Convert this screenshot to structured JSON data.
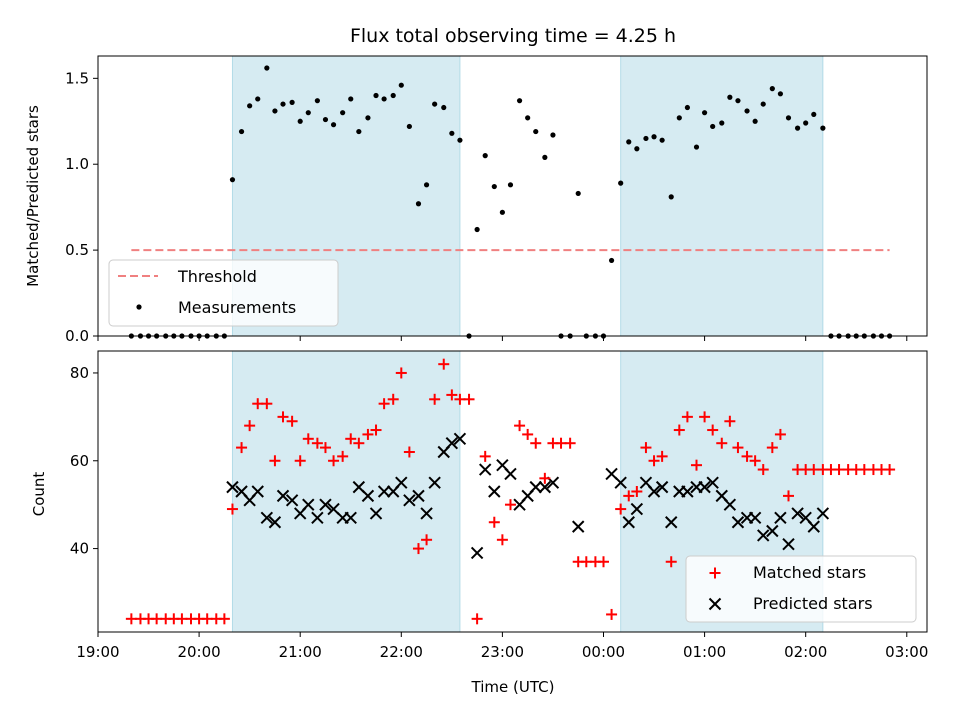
{
  "chart_data": [
    {
      "type": "scatter",
      "title": "Flux total observing time = 4.25 h",
      "xlabel": "",
      "ylabel": "Matched/Predicted stars",
      "xlim": [
        19.0,
        27.2
      ],
      "ylim": [
        0.0,
        1.63
      ],
      "yticks": [
        0.0,
        0.5,
        1.0,
        1.5
      ],
      "ytick_labels": [
        "0.0",
        "0.5",
        "1.0",
        "1.5"
      ],
      "shaded_intervals": [
        [
          20.33,
          22.58
        ],
        [
          24.17,
          26.17
        ]
      ],
      "threshold": {
        "name": "Threshold",
        "value": 0.5,
        "x_range": [
          19.33,
          26.83
        ],
        "color": "#f08080"
      },
      "legend": {
        "position": "lower-left",
        "entries": [
          "Threshold",
          "Measurements"
        ]
      },
      "series": [
        {
          "name": "Measurements",
          "color": "#000000",
          "points": [
            [
              19.33,
              0
            ],
            [
              19.42,
              0
            ],
            [
              19.5,
              0
            ],
            [
              19.58,
              0
            ],
            [
              19.67,
              0
            ],
            [
              19.75,
              0
            ],
            [
              19.83,
              0
            ],
            [
              19.92,
              0
            ],
            [
              20.0,
              0
            ],
            [
              20.08,
              0
            ],
            [
              20.17,
              0
            ],
            [
              20.25,
              0
            ],
            [
              20.33,
              0.91
            ],
            [
              20.42,
              1.19
            ],
            [
              20.5,
              1.34
            ],
            [
              20.58,
              1.38
            ],
            [
              20.67,
              1.56
            ],
            [
              20.75,
              1.31
            ],
            [
              20.83,
              1.35
            ],
            [
              20.92,
              1.36
            ],
            [
              21.0,
              1.25
            ],
            [
              21.08,
              1.3
            ],
            [
              21.17,
              1.37
            ],
            [
              21.25,
              1.26
            ],
            [
              21.33,
              1.23
            ],
            [
              21.42,
              1.3
            ],
            [
              21.5,
              1.38
            ],
            [
              21.58,
              1.19
            ],
            [
              21.67,
              1.27
            ],
            [
              21.75,
              1.4
            ],
            [
              21.83,
              1.38
            ],
            [
              21.92,
              1.4
            ],
            [
              22.0,
              1.46
            ],
            [
              22.08,
              1.22
            ],
            [
              22.17,
              0.77
            ],
            [
              22.25,
              0.88
            ],
            [
              22.33,
              1.35
            ],
            [
              22.42,
              1.33
            ],
            [
              22.5,
              1.18
            ],
            [
              22.58,
              1.14
            ],
            [
              22.67,
              0
            ],
            [
              22.75,
              0.62
            ],
            [
              22.83,
              1.05
            ],
            [
              22.92,
              0.87
            ],
            [
              23.0,
              0.72
            ],
            [
              23.08,
              0.88
            ],
            [
              23.17,
              1.37
            ],
            [
              23.25,
              1.27
            ],
            [
              23.33,
              1.19
            ],
            [
              23.42,
              1.04
            ],
            [
              23.5,
              1.17
            ],
            [
              23.58,
              0
            ],
            [
              23.67,
              0
            ],
            [
              23.75,
              0.83
            ],
            [
              23.83,
              0
            ],
            [
              23.92,
              0
            ],
            [
              24.0,
              0
            ],
            [
              24.08,
              0.44
            ],
            [
              24.17,
              0.89
            ],
            [
              24.25,
              1.13
            ],
            [
              24.33,
              1.09
            ],
            [
              24.42,
              1.15
            ],
            [
              24.5,
              1.16
            ],
            [
              24.58,
              1.14
            ],
            [
              24.67,
              0.81
            ],
            [
              24.75,
              1.27
            ],
            [
              24.83,
              1.33
            ],
            [
              24.92,
              1.1
            ],
            [
              25.0,
              1.3
            ],
            [
              25.08,
              1.22
            ],
            [
              25.17,
              1.24
            ],
            [
              25.25,
              1.39
            ],
            [
              25.33,
              1.37
            ],
            [
              25.42,
              1.31
            ],
            [
              25.5,
              1.25
            ],
            [
              25.58,
              1.35
            ],
            [
              25.67,
              1.44
            ],
            [
              25.75,
              1.41
            ],
            [
              25.83,
              1.27
            ],
            [
              25.92,
              1.21
            ],
            [
              26.0,
              1.24
            ],
            [
              26.08,
              1.29
            ],
            [
              26.17,
              1.21
            ],
            [
              26.25,
              0
            ],
            [
              26.33,
              0
            ],
            [
              26.42,
              0
            ],
            [
              26.5,
              0
            ],
            [
              26.58,
              0
            ],
            [
              26.67,
              0
            ],
            [
              26.75,
              0
            ],
            [
              26.83,
              0
            ]
          ]
        }
      ]
    },
    {
      "type": "scatter",
      "title": "",
      "xlabel": "Time (UTC)",
      "ylabel": "Count",
      "xlim": [
        19.0,
        27.2
      ],
      "ylim": [
        21,
        85
      ],
      "yticks": [
        40,
        60,
        80
      ],
      "ytick_labels": [
        "40",
        "60",
        "80"
      ],
      "xticks": [
        19,
        20,
        21,
        22,
        23,
        24,
        25,
        26,
        27
      ],
      "xtick_labels": [
        "19:00",
        "20:00",
        "21:00",
        "22:00",
        "23:00",
        "00:00",
        "01:00",
        "02:00",
        "03:00"
      ],
      "shaded_intervals": [
        [
          20.33,
          22.58
        ],
        [
          24.17,
          26.17
        ]
      ],
      "legend": {
        "position": "lower-right",
        "entries": [
          "Matched stars",
          "Predicted stars"
        ]
      },
      "series": [
        {
          "name": "Matched stars",
          "marker": "plus",
          "color": "#ff0000",
          "points": [
            [
              19.33,
              24
            ],
            [
              19.42,
              24
            ],
            [
              19.5,
              24
            ],
            [
              19.58,
              24
            ],
            [
              19.67,
              24
            ],
            [
              19.75,
              24
            ],
            [
              19.83,
              24
            ],
            [
              19.92,
              24
            ],
            [
              20.0,
              24
            ],
            [
              20.08,
              24
            ],
            [
              20.17,
              24
            ],
            [
              20.25,
              24
            ],
            [
              20.33,
              49
            ],
            [
              20.42,
              63
            ],
            [
              20.5,
              68
            ],
            [
              20.58,
              73
            ],
            [
              20.67,
              73
            ],
            [
              20.75,
              60
            ],
            [
              20.83,
              70
            ],
            [
              20.92,
              69
            ],
            [
              21.0,
              60
            ],
            [
              21.08,
              65
            ],
            [
              21.17,
              64
            ],
            [
              21.25,
              63
            ],
            [
              21.33,
              60
            ],
            [
              21.42,
              61
            ],
            [
              21.5,
              65
            ],
            [
              21.58,
              64
            ],
            [
              21.67,
              66
            ],
            [
              21.75,
              67
            ],
            [
              21.83,
              73
            ],
            [
              21.92,
              74
            ],
            [
              22.0,
              80
            ],
            [
              22.08,
              62
            ],
            [
              22.17,
              40
            ],
            [
              22.25,
              42
            ],
            [
              22.33,
              74
            ],
            [
              22.42,
              82
            ],
            [
              22.5,
              75
            ],
            [
              22.58,
              74
            ],
            [
              22.67,
              74
            ],
            [
              22.75,
              24
            ],
            [
              22.83,
              61
            ],
            [
              22.92,
              46
            ],
            [
              23.0,
              42
            ],
            [
              23.08,
              50
            ],
            [
              23.17,
              68
            ],
            [
              23.25,
              66
            ],
            [
              23.33,
              64
            ],
            [
              23.42,
              56
            ],
            [
              23.5,
              64
            ],
            [
              23.58,
              64
            ],
            [
              23.67,
              64
            ],
            [
              23.75,
              37
            ],
            [
              23.83,
              37
            ],
            [
              23.92,
              37
            ],
            [
              24.0,
              37
            ],
            [
              24.08,
              25
            ],
            [
              24.17,
              49
            ],
            [
              24.25,
              52
            ],
            [
              24.33,
              53
            ],
            [
              24.42,
              63
            ],
            [
              24.5,
              60
            ],
            [
              24.58,
              61
            ],
            [
              24.67,
              37
            ],
            [
              24.75,
              67
            ],
            [
              24.83,
              70
            ],
            [
              24.92,
              59
            ],
            [
              25.0,
              70
            ],
            [
              25.08,
              67
            ],
            [
              25.17,
              64
            ],
            [
              25.25,
              69
            ],
            [
              25.33,
              63
            ],
            [
              25.42,
              61
            ],
            [
              25.5,
              60
            ],
            [
              25.58,
              58
            ],
            [
              25.67,
              63
            ],
            [
              25.75,
              66
            ],
            [
              25.83,
              52
            ],
            [
              25.92,
              58
            ],
            [
              26.0,
              58
            ],
            [
              26.08,
              58
            ],
            [
              26.17,
              58
            ],
            [
              26.25,
              58
            ],
            [
              26.33,
              58
            ],
            [
              26.42,
              58
            ],
            [
              26.5,
              58
            ],
            [
              26.58,
              58
            ],
            [
              26.67,
              58
            ],
            [
              26.75,
              58
            ],
            [
              26.83,
              58
            ]
          ]
        },
        {
          "name": "Predicted stars",
          "marker": "x",
          "color": "#000000",
          "points": [
            [
              20.33,
              54
            ],
            [
              20.42,
              53
            ],
            [
              20.5,
              51
            ],
            [
              20.58,
              53
            ],
            [
              20.67,
              47
            ],
            [
              20.75,
              46
            ],
            [
              20.83,
              52
            ],
            [
              20.92,
              51
            ],
            [
              21.0,
              48
            ],
            [
              21.08,
              50
            ],
            [
              21.17,
              47
            ],
            [
              21.25,
              50
            ],
            [
              21.33,
              49
            ],
            [
              21.42,
              47
            ],
            [
              21.5,
              47
            ],
            [
              21.58,
              54
            ],
            [
              21.67,
              52
            ],
            [
              21.75,
              48
            ],
            [
              21.83,
              53
            ],
            [
              21.92,
              53
            ],
            [
              22.0,
              55
            ],
            [
              22.08,
              51
            ],
            [
              22.17,
              52
            ],
            [
              22.25,
              48
            ],
            [
              22.33,
              55
            ],
            [
              22.42,
              62
            ],
            [
              22.5,
              64
            ],
            [
              22.58,
              65
            ],
            [
              22.75,
              39
            ],
            [
              22.83,
              58
            ],
            [
              22.92,
              53
            ],
            [
              23.0,
              59
            ],
            [
              23.08,
              57
            ],
            [
              23.17,
              50
            ],
            [
              23.25,
              52
            ],
            [
              23.33,
              54
            ],
            [
              23.42,
              54
            ],
            [
              23.5,
              55
            ],
            [
              23.75,
              45
            ],
            [
              24.08,
              57
            ],
            [
              24.17,
              55
            ],
            [
              24.25,
              46
            ],
            [
              24.33,
              49
            ],
            [
              24.42,
              55
            ],
            [
              24.5,
              53
            ],
            [
              24.58,
              54
            ],
            [
              24.67,
              46
            ],
            [
              24.75,
              53
            ],
            [
              24.83,
              53
            ],
            [
              24.92,
              54
            ],
            [
              25.0,
              54
            ],
            [
              25.08,
              55
            ],
            [
              25.17,
              52
            ],
            [
              25.25,
              50
            ],
            [
              25.33,
              46
            ],
            [
              25.42,
              47
            ],
            [
              25.5,
              47
            ],
            [
              25.58,
              43
            ],
            [
              25.67,
              44
            ],
            [
              25.75,
              47
            ],
            [
              25.83,
              41
            ],
            [
              25.92,
              48
            ],
            [
              26.0,
              47
            ],
            [
              26.08,
              45
            ],
            [
              26.17,
              48
            ]
          ]
        }
      ]
    }
  ]
}
